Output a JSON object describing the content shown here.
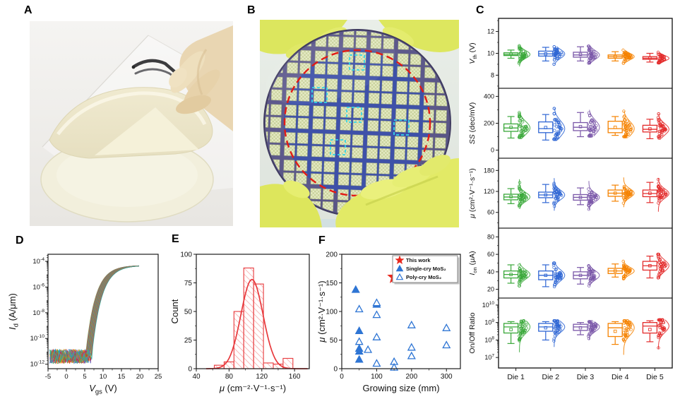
{
  "labels": {
    "a": "A",
    "b": "B",
    "c": "C",
    "d": "D",
    "e": "E",
    "f": "F"
  },
  "photo_a": {
    "content": "gloved hand with tweezers peeling a transparent flexible film from circular substrates"
  },
  "photo_b": {
    "content": "yellow-gloved hands holding a wafer patterned with device arrays, red dashed circle and cyan dashed die outlines"
  },
  "chart_data": [
    {
      "id": "C",
      "type": "box",
      "categories": [
        "Die 1",
        "Die 2",
        "Die 3",
        "Die 4",
        "Die 5"
      ],
      "colors": [
        "#3aa83a",
        "#2f66d4",
        "#7a57a8",
        "#f58200",
        "#e32c2c"
      ],
      "subplots": [
        {
          "ylabel": {
            "sym": "V",
            "sub": "th",
            "rest": " (V)"
          },
          "ylim": [
            6.8,
            13.2
          ],
          "yticks": [
            8,
            10,
            12
          ],
          "log": false,
          "stats": [
            {
              "lo": 9.55,
              "q1": 9.8,
              "med": 9.9,
              "q3": 10.05,
              "hi": 10.3,
              "mean": 9.92,
              "sd": 0.33,
              "cloudlo": 8.8,
              "cloudhi": 10.7
            },
            {
              "lo": 9.3,
              "q1": 9.75,
              "med": 9.95,
              "q3": 10.2,
              "hi": 10.55,
              "mean": 9.95,
              "sd": 0.38,
              "cloudlo": 9.0,
              "cloudhi": 10.6
            },
            {
              "lo": 9.3,
              "q1": 9.65,
              "med": 9.85,
              "q3": 10.1,
              "hi": 10.6,
              "mean": 9.9,
              "sd": 0.38,
              "cloudlo": 9.0,
              "cloudhi": 10.65
            },
            {
              "lo": 9.3,
              "q1": 9.55,
              "med": 9.7,
              "q3": 9.85,
              "hi": 10.15,
              "mean": 9.7,
              "sd": 0.28,
              "cloudlo": 9.1,
              "cloudhi": 10.3
            },
            {
              "lo": 9.2,
              "q1": 9.45,
              "med": 9.55,
              "q3": 9.7,
              "hi": 10.0,
              "mean": 9.57,
              "sd": 0.24,
              "cloudlo": 9.1,
              "cloudhi": 10.1
            }
          ]
        },
        {
          "ylabel": {
            "sym": "SS",
            "rest": " (dec/mV)"
          },
          "ylim": [
            -60,
            460
          ],
          "yticks": [
            0,
            200,
            400
          ],
          "log": false,
          "stats": [
            {
              "lo": 90,
              "q1": 140,
              "med": 165,
              "q3": 195,
              "hi": 250,
              "mean": 170,
              "sd": 45,
              "cloudlo": 95,
              "cloudhi": 280
            },
            {
              "lo": 75,
              "q1": 130,
              "med": 160,
              "q3": 210,
              "hi": 265,
              "mean": 168,
              "sd": 55,
              "cloudlo": 80,
              "cloudhi": 310
            },
            {
              "lo": 100,
              "q1": 145,
              "med": 170,
              "q3": 205,
              "hi": 280,
              "mean": 175,
              "sd": 50,
              "cloudlo": 105,
              "cloudhi": 300
            },
            {
              "lo": 110,
              "q1": 130,
              "med": 160,
              "q3": 215,
              "hi": 250,
              "mean": 170,
              "sd": 50,
              "cloudlo": 100,
              "cloudhi": 290
            },
            {
              "lo": 85,
              "q1": 135,
              "med": 155,
              "q3": 185,
              "hi": 230,
              "mean": 158,
              "sd": 40,
              "cloudlo": 90,
              "cloudhi": 270
            }
          ]
        },
        {
          "ylabel": {
            "sym": "μ",
            "rest": " (cm²·V⁻¹·s⁻¹)"
          },
          "ylim": [
            15,
            215
          ],
          "yticks": [
            60,
            120,
            180
          ],
          "log": false,
          "stats": [
            {
              "lo": 85,
              "q1": 96,
              "med": 104,
              "q3": 112,
              "hi": 128,
              "mean": 105,
              "sd": 12,
              "cloudlo": 70,
              "cloudhi": 155
            },
            {
              "lo": 88,
              "q1": 102,
              "med": 110,
              "q3": 118,
              "hi": 140,
              "mean": 110,
              "sd": 13,
              "cloudlo": 65,
              "cloudhi": 158
            },
            {
              "lo": 82,
              "q1": 95,
              "med": 103,
              "q3": 111,
              "hi": 130,
              "mean": 103,
              "sd": 12,
              "cloudlo": 68,
              "cloudhi": 150
            },
            {
              "lo": 92,
              "q1": 106,
              "med": 115,
              "q3": 124,
              "hi": 138,
              "mean": 115,
              "sd": 12,
              "cloudlo": 75,
              "cloudhi": 160
            },
            {
              "lo": 88,
              "q1": 105,
              "med": 114,
              "q3": 124,
              "hi": 146,
              "mean": 115,
              "sd": 13,
              "cloudlo": 62,
              "cloudhi": 158
            }
          ]
        },
        {
          "ylabel": {
            "sym": "I",
            "sub": "on",
            "rest": " (μA)"
          },
          "ylim": [
            10,
            90
          ],
          "yticks": [
            20,
            40,
            60,
            80
          ],
          "log": false,
          "stats": [
            {
              "lo": 27,
              "q1": 33,
              "med": 37,
              "q3": 41,
              "hi": 48,
              "mean": 37,
              "sd": 5,
              "cloudlo": 24,
              "cloudhi": 50
            },
            {
              "lo": 23,
              "q1": 31,
              "med": 36,
              "q3": 41,
              "hi": 48,
              "mean": 36,
              "sd": 6,
              "cloudlo": 23,
              "cloudhi": 50
            },
            {
              "lo": 26,
              "q1": 32,
              "med": 36,
              "q3": 40,
              "hi": 45,
              "mean": 36,
              "sd": 5,
              "cloudlo": 24,
              "cloudhi": 47
            },
            {
              "lo": 34,
              "q1": 38,
              "med": 41,
              "q3": 44,
              "hi": 49,
              "mean": 41,
              "sd": 4,
              "cloudlo": 32,
              "cloudhi": 52
            },
            {
              "lo": 33,
              "q1": 42,
              "med": 47,
              "q3": 52,
              "hi": 58,
              "mean": 47,
              "sd": 6,
              "cloudlo": 32,
              "cloudhi": 60
            }
          ]
        },
        {
          "ylabel": {
            "rest": "On/Off Ratio"
          },
          "ylim": [
            6.4,
            10.4
          ],
          "yticks": [
            7,
            8,
            9,
            10
          ],
          "log": true,
          "stats": [
            {
              "lo": 7.8,
              "q1": 8.4,
              "med": 8.75,
              "q3": 8.95,
              "hi": 9.05,
              "mean": 8.6,
              "sd": 0.35,
              "cloudlo": 7.3,
              "cloudhi": 9.1
            },
            {
              "lo": 8.0,
              "q1": 8.5,
              "med": 8.75,
              "q3": 8.95,
              "hi": 9.05,
              "mean": 8.7,
              "sd": 0.3,
              "cloudlo": 7.6,
              "cloudhi": 9.1
            },
            {
              "lo": 8.3,
              "q1": 8.55,
              "med": 8.75,
              "q3": 8.9,
              "hi": 9.0,
              "mean": 8.7,
              "sd": 0.25,
              "cloudlo": 8.0,
              "cloudhi": 9.05
            },
            {
              "lo": 7.75,
              "q1": 8.2,
              "med": 8.7,
              "q3": 8.95,
              "hi": 9.05,
              "mean": 8.5,
              "sd": 0.4,
              "cloudlo": 7.15,
              "cloudhi": 9.1
            },
            {
              "lo": 7.9,
              "q1": 8.4,
              "med": 8.8,
              "q3": 9.0,
              "hi": 9.1,
              "mean": 8.6,
              "sd": 0.35,
              "cloudlo": 7.5,
              "cloudhi": 9.15
            }
          ]
        }
      ]
    },
    {
      "id": "D",
      "type": "line",
      "xlabel": {
        "sym": "V",
        "sub": "gs",
        "rest": " (V)"
      },
      "ylabel": {
        "sym": "I",
        "sub": "d",
        "rest": " (A/μm)"
      },
      "xlim": [
        -5,
        25
      ],
      "xticks": [
        -5,
        0,
        5,
        10,
        15,
        20,
        25
      ],
      "ylim_log": [
        -12.35,
        -3.45
      ],
      "yticks_pow": [
        -12,
        -10,
        -8,
        -6,
        -4
      ],
      "curves": {
        "count": 28,
        "vth_min": 5.2,
        "vth_max": 6.9,
        "x_start": -4.5,
        "x_end": 20,
        "floor_log": -11.4,
        "floor_noise": 0.55,
        "rise_tau": 2.6,
        "amplitude": 7.08
      },
      "palette": [
        "#4daf4a",
        "#ff8c00",
        "#3a7bd5",
        "#8e55a8",
        "#d62728",
        "#8a9a2e",
        "#2ca9a9"
      ]
    },
    {
      "id": "E",
      "type": "histogram",
      "xlabel": {
        "sym": "μ",
        "rest": " (cm⁻²·V⁻¹·s⁻¹)"
      },
      "ylabel": {
        "rest": "Count"
      },
      "xlim": [
        40,
        178
      ],
      "xticks": [
        40,
        80,
        120,
        160
      ],
      "ylim": [
        0,
        100
      ],
      "yticks": [
        0,
        25,
        50,
        75,
        100
      ],
      "bin_edges": [
        62,
        74,
        86,
        98,
        110,
        122,
        134,
        146,
        158
      ],
      "counts": [
        3,
        6,
        50,
        88,
        74,
        5,
        4,
        9
      ],
      "fit": {
        "center": 108,
        "sigma": 13.5,
        "amp": 78
      },
      "color": "#e8393c"
    },
    {
      "id": "F",
      "type": "scatter",
      "xlabel": {
        "rest": "Growing size (mm)"
      },
      "ylabel": {
        "sym": "μ",
        "rest": " (cm²·V⁻¹·s⁻¹)"
      },
      "xlim": [
        0,
        340
      ],
      "xticks": [
        0,
        100,
        200,
        300
      ],
      "ylim": [
        0,
        200
      ],
      "yticks": [
        0,
        50,
        100,
        150,
        200
      ],
      "legend_position": "top-right",
      "series": [
        {
          "name": "This work",
          "marker": "star",
          "color": "#e8281e",
          "fill": true,
          "points": [
            [
              150,
              160
            ]
          ]
        },
        {
          "name": "Single-cry MoS₂",
          "marker": "triangle",
          "color": "#2e75d4",
          "fill": true,
          "points": [
            [
              40,
              138
            ],
            [
              50,
              66
            ],
            [
              50,
              35
            ],
            [
              50,
              30
            ],
            [
              50,
              16
            ],
            [
              100,
              112
            ]
          ]
        },
        {
          "name": "Poly-cry MoS₂",
          "marker": "triangle",
          "color": "#2e75d4",
          "fill": false,
          "points": [
            [
              50,
              104
            ],
            [
              50,
              47
            ],
            [
              75,
              33
            ],
            [
              100,
              115
            ],
            [
              100,
              94
            ],
            [
              100,
              55
            ],
            [
              100,
              9
            ],
            [
              150,
              12
            ],
            [
              150,
              2
            ],
            [
              200,
              76
            ],
            [
              200,
              37
            ],
            [
              200,
              22
            ],
            [
              300,
              71
            ],
            [
              300,
              41
            ]
          ]
        }
      ]
    }
  ]
}
